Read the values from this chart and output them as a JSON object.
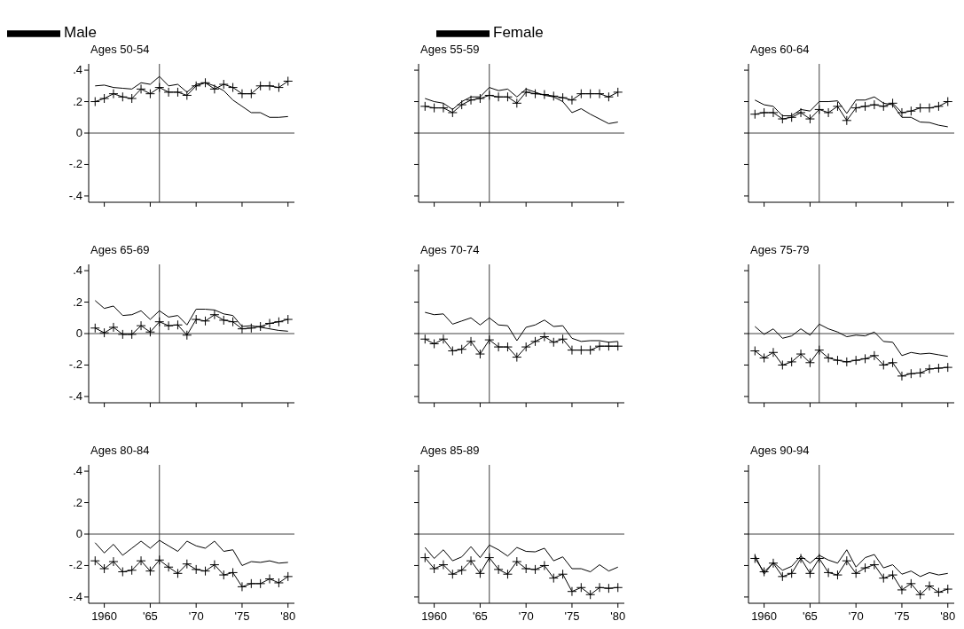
{
  "chart_data": [
    {
      "type": "line",
      "title": "Ages 50-54",
      "legend": "top",
      "tick_labels": "y",
      "xlim": [
        1958.3,
        1980.7
      ],
      "ylim": [
        -0.44,
        0.44
      ],
      "xticks": [
        {
          "value": 1960,
          "label": null
        },
        {
          "value": 1965,
          "label": null
        },
        {
          "value": 1970,
          "label": null
        },
        {
          "value": 1975,
          "label": null
        },
        {
          "value": 1980,
          "label": null
        }
      ],
      "yticks": [
        {
          "value": 0.4,
          "label": ".4"
        },
        {
          "value": 0.2,
          "label": ".2"
        },
        {
          "value": 0,
          "label": "0"
        },
        {
          "value": -0.2,
          "label": "-.2"
        },
        {
          "value": -0.4,
          "label": "-.4"
        }
      ],
      "grid": false,
      "line_style": "solid",
      "ref_lines": [
        {
          "axis": "x",
          "value": 1966,
          "color": "#404040"
        },
        {
          "axis": "y",
          "value": 0,
          "color": "#404040"
        }
      ],
      "x": [
        1959,
        1960,
        1961,
        1962,
        1963,
        1964,
        1965,
        1966,
        1967,
        1968,
        1969,
        1970,
        1971,
        1972,
        1973,
        1974,
        1975,
        1976,
        1977,
        1978,
        1979,
        1980
      ],
      "series": [
        {
          "name": "Male",
          "color": "#000000",
          "marker": "none",
          "values": [
            0.3,
            0.305,
            0.29,
            0.285,
            0.28,
            0.32,
            0.31,
            0.36,
            0.3,
            0.31,
            0.26,
            0.31,
            0.32,
            0.3,
            0.27,
            0.21,
            0.17,
            0.13,
            0.13,
            0.1,
            0.1,
            0.105
          ]
        },
        {
          "name": "Female",
          "color": "#000000",
          "marker": "cross",
          "values": [
            0.2,
            0.22,
            0.25,
            0.23,
            0.22,
            0.28,
            0.25,
            0.29,
            0.26,
            0.26,
            0.24,
            0.3,
            0.32,
            0.28,
            0.31,
            0.29,
            0.25,
            0.25,
            0.3,
            0.3,
            0.29,
            0.33
          ]
        }
      ]
    },
    {
      "type": "line",
      "title": "Ages 55-59",
      "tick_labels": false,
      "xlim": [
        1958.3,
        1980.7
      ],
      "ylim": [
        -0.44,
        0.44
      ],
      "xticks": [
        {
          "value": 1960,
          "label": null
        },
        {
          "value": 1965,
          "label": null
        },
        {
          "value": 1970,
          "label": null
        },
        {
          "value": 1975,
          "label": null
        },
        {
          "value": 1980,
          "label": null
        }
      ],
      "yticks": [
        {
          "value": 0.4,
          "label": null
        },
        {
          "value": 0.2,
          "label": null
        },
        {
          "value": 0,
          "label": null
        },
        {
          "value": -0.2,
          "label": null
        },
        {
          "value": -0.4,
          "label": null
        }
      ],
      "grid": false,
      "line_style": "solid",
      "ref_lines": [
        {
          "axis": "x",
          "value": 1966,
          "color": "#404040"
        },
        {
          "axis": "y",
          "value": 0,
          "color": "#404040"
        }
      ],
      "x": [
        1959,
        1960,
        1961,
        1962,
        1963,
        1964,
        1965,
        1966,
        1967,
        1968,
        1969,
        1970,
        1971,
        1972,
        1973,
        1974,
        1975,
        1976,
        1977,
        1978,
        1979,
        1980
      ],
      "series": [
        {
          "color": "#000000",
          "marker": "none",
          "values": [
            0.22,
            0.2,
            0.19,
            0.15,
            0.2,
            0.23,
            0.23,
            0.29,
            0.27,
            0.28,
            0.23,
            0.28,
            0.26,
            0.24,
            0.23,
            0.2,
            0.13,
            0.155,
            0.12,
            0.09,
            0.06,
            0.07
          ]
        },
        {
          "color": "#000000",
          "marker": "cross",
          "values": [
            0.17,
            0.16,
            0.16,
            0.13,
            0.18,
            0.21,
            0.22,
            0.24,
            0.23,
            0.23,
            0.19,
            0.26,
            0.25,
            0.245,
            0.235,
            0.225,
            0.21,
            0.25,
            0.25,
            0.25,
            0.23,
            0.26
          ]
        }
      ]
    },
    {
      "type": "line",
      "title": "Ages 60-64",
      "tick_labels": false,
      "xlim": [
        1958.3,
        1980.7
      ],
      "ylim": [
        -0.44,
        0.44
      ],
      "xticks": [
        {
          "value": 1960,
          "label": null
        },
        {
          "value": 1965,
          "label": null
        },
        {
          "value": 1970,
          "label": null
        },
        {
          "value": 1975,
          "label": null
        },
        {
          "value": 1980,
          "label": null
        }
      ],
      "yticks": [
        {
          "value": 0.4,
          "label": null
        },
        {
          "value": 0.2,
          "label": null
        },
        {
          "value": 0,
          "label": null
        },
        {
          "value": -0.2,
          "label": null
        },
        {
          "value": -0.4,
          "label": null
        }
      ],
      "grid": false,
      "line_style": "solid",
      "ref_lines": [
        {
          "axis": "x",
          "value": 1966,
          "color": "#404040"
        },
        {
          "axis": "y",
          "value": 0,
          "color": "#404040"
        }
      ],
      "x": [
        1959,
        1960,
        1961,
        1962,
        1963,
        1964,
        1965,
        1966,
        1967,
        1968,
        1969,
        1970,
        1971,
        1972,
        1973,
        1974,
        1975,
        1976,
        1977,
        1978,
        1979,
        1980
      ],
      "series": [
        {
          "color": "#000000",
          "marker": "none",
          "values": [
            0.21,
            0.18,
            0.17,
            0.11,
            0.11,
            0.15,
            0.14,
            0.2,
            0.2,
            0.205,
            0.125,
            0.21,
            0.21,
            0.23,
            0.19,
            0.18,
            0.1,
            0.1,
            0.07,
            0.067,
            0.05,
            0.04
          ]
        },
        {
          "color": "#000000",
          "marker": "cross",
          "values": [
            0.12,
            0.13,
            0.13,
            0.09,
            0.1,
            0.13,
            0.09,
            0.15,
            0.13,
            0.17,
            0.08,
            0.16,
            0.17,
            0.18,
            0.17,
            0.19,
            0.13,
            0.14,
            0.16,
            0.16,
            0.17,
            0.2
          ]
        }
      ]
    },
    {
      "type": "line",
      "title": "Ages 65-69",
      "tick_labels": "y",
      "xlim": [
        1958.3,
        1980.7
      ],
      "ylim": [
        -0.44,
        0.44
      ],
      "xticks": [
        {
          "value": 1960,
          "label": null
        },
        {
          "value": 1965,
          "label": null
        },
        {
          "value": 1970,
          "label": null
        },
        {
          "value": 1975,
          "label": null
        },
        {
          "value": 1980,
          "label": null
        }
      ],
      "yticks": [
        {
          "value": 0.4,
          "label": ".4"
        },
        {
          "value": 0.2,
          "label": ".2"
        },
        {
          "value": 0,
          "label": "0"
        },
        {
          "value": -0.2,
          "label": "-.2"
        },
        {
          "value": -0.4,
          "label": "-.4"
        }
      ],
      "grid": false,
      "line_style": "solid",
      "ref_lines": [
        {
          "axis": "x",
          "value": 1966,
          "color": "#404040"
        },
        {
          "axis": "y",
          "value": 0,
          "color": "#404040"
        }
      ],
      "x": [
        1959,
        1960,
        1961,
        1962,
        1963,
        1964,
        1965,
        1966,
        1967,
        1968,
        1969,
        1970,
        1971,
        1972,
        1973,
        1974,
        1975,
        1976,
        1977,
        1978,
        1979,
        1980
      ],
      "series": [
        {
          "color": "#000000",
          "marker": "none",
          "values": [
            0.21,
            0.16,
            0.175,
            0.115,
            0.12,
            0.145,
            0.09,
            0.145,
            0.105,
            0.115,
            0.055,
            0.155,
            0.155,
            0.15,
            0.125,
            0.115,
            0.045,
            0.05,
            0.04,
            0.03,
            0.02,
            0.015
          ]
        },
        {
          "color": "#000000",
          "marker": "cross",
          "values": [
            0.035,
            0.005,
            0.04,
            -0.005,
            -0.005,
            0.05,
            0.01,
            0.075,
            0.05,
            0.055,
            -0.01,
            0.09,
            0.08,
            0.12,
            0.085,
            0.075,
            0.03,
            0.035,
            0.045,
            0.065,
            0.075,
            0.09
          ]
        }
      ]
    },
    {
      "type": "line",
      "title": "Ages 70-74",
      "tick_labels": false,
      "xlim": [
        1958.3,
        1980.7
      ],
      "ylim": [
        -0.44,
        0.44
      ],
      "xticks": [
        {
          "value": 1960,
          "label": null
        },
        {
          "value": 1965,
          "label": null
        },
        {
          "value": 1970,
          "label": null
        },
        {
          "value": 1975,
          "label": null
        },
        {
          "value": 1980,
          "label": null
        }
      ],
      "yticks": [
        {
          "value": 0.4,
          "label": null
        },
        {
          "value": 0.2,
          "label": null
        },
        {
          "value": 0,
          "label": null
        },
        {
          "value": -0.2,
          "label": null
        },
        {
          "value": -0.4,
          "label": null
        }
      ],
      "grid": false,
      "line_style": "solid",
      "ref_lines": [
        {
          "axis": "x",
          "value": 1966,
          "color": "#404040"
        },
        {
          "axis": "y",
          "value": 0,
          "color": "#404040"
        }
      ],
      "x": [
        1959,
        1960,
        1961,
        1962,
        1963,
        1964,
        1965,
        1966,
        1967,
        1968,
        1969,
        1970,
        1971,
        1972,
        1973,
        1974,
        1975,
        1976,
        1977,
        1978,
        1979,
        1980
      ],
      "series": [
        {
          "color": "#000000",
          "marker": "none",
          "values": [
            0.135,
            0.12,
            0.125,
            0.06,
            0.08,
            0.1,
            0.055,
            0.1,
            0.055,
            0.05,
            -0.045,
            0.04,
            0.055,
            0.086,
            0.045,
            0.05,
            -0.03,
            -0.05,
            -0.045,
            -0.045,
            -0.055,
            -0.05
          ]
        },
        {
          "color": "#000000",
          "marker": "cross",
          "values": [
            -0.035,
            -0.065,
            -0.035,
            -0.11,
            -0.1,
            -0.05,
            -0.13,
            -0.04,
            -0.085,
            -0.085,
            -0.15,
            -0.085,
            -0.05,
            -0.02,
            -0.055,
            -0.035,
            -0.105,
            -0.105,
            -0.105,
            -0.08,
            -0.08,
            -0.08
          ]
        }
      ]
    },
    {
      "type": "line",
      "title": "Ages 75-79",
      "tick_labels": false,
      "xlim": [
        1958.3,
        1980.7
      ],
      "ylim": [
        -0.44,
        0.44
      ],
      "xticks": [
        {
          "value": 1960,
          "label": null
        },
        {
          "value": 1965,
          "label": null
        },
        {
          "value": 1970,
          "label": null
        },
        {
          "value": 1975,
          "label": null
        },
        {
          "value": 1980,
          "label": null
        }
      ],
      "yticks": [
        {
          "value": 0.4,
          "label": null
        },
        {
          "value": 0.2,
          "label": null
        },
        {
          "value": 0,
          "label": null
        },
        {
          "value": -0.2,
          "label": null
        },
        {
          "value": -0.4,
          "label": null
        }
      ],
      "grid": false,
      "line_style": "solid",
      "ref_lines": [
        {
          "axis": "x",
          "value": 1966,
          "color": "#404040"
        },
        {
          "axis": "y",
          "value": 0,
          "color": "#404040"
        }
      ],
      "x": [
        1959,
        1960,
        1961,
        1962,
        1963,
        1964,
        1965,
        1966,
        1967,
        1968,
        1969,
        1970,
        1971,
        1972,
        1973,
        1974,
        1975,
        1976,
        1977,
        1978,
        1979,
        1980
      ],
      "series": [
        {
          "color": "#000000",
          "marker": "none",
          "values": [
            0.045,
            -0.005,
            0.03,
            -0.03,
            -0.015,
            0.03,
            -0.01,
            0.06,
            0.03,
            0.01,
            -0.02,
            -0.01,
            -0.015,
            0.01,
            -0.05,
            -0.055,
            -0.14,
            -0.12,
            -0.13,
            -0.125,
            -0.135,
            -0.145
          ]
        },
        {
          "color": "#000000",
          "marker": "cross",
          "values": [
            -0.11,
            -0.155,
            -0.12,
            -0.2,
            -0.18,
            -0.13,
            -0.185,
            -0.105,
            -0.155,
            -0.17,
            -0.18,
            -0.17,
            -0.16,
            -0.14,
            -0.2,
            -0.185,
            -0.27,
            -0.255,
            -0.25,
            -0.225,
            -0.22,
            -0.215
          ]
        }
      ]
    },
    {
      "type": "line",
      "title": "Ages 80-84",
      "xlim": [
        1958.3,
        1980.7
      ],
      "ylim": [
        -0.44,
        0.44
      ],
      "xticks": [
        {
          "value": 1960,
          "label": "1960"
        },
        {
          "value": 1965,
          "label": "'65"
        },
        {
          "value": 1970,
          "label": "'70"
        },
        {
          "value": 1975,
          "label": "'75"
        },
        {
          "value": 1980,
          "label": "'80"
        }
      ],
      "yticks": [
        {
          "value": 0.4,
          "label": ".4"
        },
        {
          "value": 0.2,
          "label": ".2"
        },
        {
          "value": 0,
          "label": "0"
        },
        {
          "value": -0.2,
          "label": "-.2"
        },
        {
          "value": -0.4,
          "label": "-.4"
        }
      ],
      "grid": false,
      "line_style": "solid",
      "ref_lines": [
        {
          "axis": "x",
          "value": 1966,
          "color": "#404040"
        },
        {
          "axis": "y",
          "value": 0,
          "color": "#404040"
        }
      ],
      "x": [
        1959,
        1960,
        1961,
        1962,
        1963,
        1964,
        1965,
        1966,
        1967,
        1968,
        1969,
        1970,
        1971,
        1972,
        1973,
        1974,
        1975,
        1976,
        1977,
        1978,
        1979,
        1980
      ],
      "series": [
        {
          "color": "#000000",
          "marker": "none",
          "values": [
            -0.055,
            -0.12,
            -0.065,
            -0.135,
            -0.09,
            -0.045,
            -0.09,
            -0.04,
            -0.075,
            -0.11,
            -0.045,
            -0.075,
            -0.09,
            -0.045,
            -0.11,
            -0.1,
            -0.2,
            -0.175,
            -0.18,
            -0.17,
            -0.185,
            -0.18
          ]
        },
        {
          "color": "#000000",
          "marker": "cross",
          "values": [
            -0.17,
            -0.22,
            -0.175,
            -0.24,
            -0.23,
            -0.17,
            -0.235,
            -0.165,
            -0.21,
            -0.25,
            -0.19,
            -0.225,
            -0.235,
            -0.195,
            -0.26,
            -0.245,
            -0.335,
            -0.315,
            -0.315,
            -0.285,
            -0.31,
            -0.27
          ]
        }
      ]
    },
    {
      "type": "line",
      "title": "Ages 85-89",
      "tick_labels": "x",
      "xlim": [
        1958.3,
        1980.7
      ],
      "ylim": [
        -0.44,
        0.44
      ],
      "xticks": [
        {
          "value": 1960,
          "label": "1960"
        },
        {
          "value": 1965,
          "label": "'65"
        },
        {
          "value": 1970,
          "label": "'70"
        },
        {
          "value": 1975,
          "label": "'75"
        },
        {
          "value": 1980,
          "label": "'80"
        }
      ],
      "yticks": [
        {
          "value": 0.4,
          "label": null
        },
        {
          "value": 0.2,
          "label": null
        },
        {
          "value": 0,
          "label": null
        },
        {
          "value": -0.2,
          "label": null
        },
        {
          "value": -0.4,
          "label": null
        }
      ],
      "grid": false,
      "line_style": "solid",
      "ref_lines": [
        {
          "axis": "x",
          "value": 1966,
          "color": "#404040"
        },
        {
          "axis": "y",
          "value": 0,
          "color": "#404040"
        }
      ],
      "x": [
        1959,
        1960,
        1961,
        1962,
        1963,
        1964,
        1965,
        1966,
        1967,
        1968,
        1969,
        1970,
        1971,
        1972,
        1973,
        1974,
        1975,
        1976,
        1977,
        1978,
        1979,
        1980
      ],
      "series": [
        {
          "color": "#000000",
          "marker": "none",
          "values": [
            -0.085,
            -0.155,
            -0.1,
            -0.17,
            -0.145,
            -0.08,
            -0.15,
            -0.07,
            -0.1,
            -0.14,
            -0.085,
            -0.11,
            -0.113,
            -0.09,
            -0.17,
            -0.145,
            -0.22,
            -0.22,
            -0.24,
            -0.195,
            -0.235,
            -0.21
          ]
        },
        {
          "color": "#000000",
          "marker": "cross",
          "values": [
            -0.15,
            -0.22,
            -0.195,
            -0.255,
            -0.23,
            -0.17,
            -0.25,
            -0.15,
            -0.225,
            -0.255,
            -0.175,
            -0.22,
            -0.225,
            -0.2,
            -0.28,
            -0.255,
            -0.365,
            -0.34,
            -0.385,
            -0.34,
            -0.345,
            -0.34
          ]
        }
      ]
    },
    {
      "type": "line",
      "title": "Ages 90-94",
      "tick_labels": "x",
      "xlim": [
        1958.3,
        1980.7
      ],
      "ylim": [
        -0.44,
        0.44
      ],
      "xticks": [
        {
          "value": 1960,
          "label": "1960"
        },
        {
          "value": 1965,
          "label": "'65"
        },
        {
          "value": 1970,
          "label": "'70"
        },
        {
          "value": 1975,
          "label": "'75"
        },
        {
          "value": 1980,
          "label": "'80"
        }
      ],
      "yticks": [
        {
          "value": 0.4,
          "label": null
        },
        {
          "value": 0.2,
          "label": null
        },
        {
          "value": 0,
          "label": null
        },
        {
          "value": -0.2,
          "label": null
        },
        {
          "value": -0.4,
          "label": null
        }
      ],
      "grid": false,
      "line_style": "solid",
      "ref_lines": [
        {
          "axis": "x",
          "value": 1966,
          "color": "#404040"
        },
        {
          "axis": "y",
          "value": 0,
          "color": "#404040"
        }
      ],
      "x": [
        1959,
        1960,
        1961,
        1962,
        1963,
        1964,
        1965,
        1966,
        1967,
        1968,
        1969,
        1970,
        1971,
        1972,
        1973,
        1974,
        1975,
        1976,
        1977,
        1978,
        1979,
        1980
      ],
      "series": [
        {
          "color": "#000000",
          "marker": "none",
          "values": [
            -0.135,
            -0.255,
            -0.18,
            -0.23,
            -0.205,
            -0.14,
            -0.185,
            -0.135,
            -0.165,
            -0.185,
            -0.1,
            -0.21,
            -0.15,
            -0.13,
            -0.215,
            -0.195,
            -0.255,
            -0.235,
            -0.27,
            -0.245,
            -0.26,
            -0.25
          ]
        },
        {
          "color": "#000000",
          "marker": "cross",
          "values": [
            -0.155,
            -0.24,
            -0.185,
            -0.27,
            -0.25,
            -0.155,
            -0.25,
            -0.155,
            -0.245,
            -0.26,
            -0.17,
            -0.25,
            -0.215,
            -0.195,
            -0.28,
            -0.26,
            -0.355,
            -0.315,
            -0.385,
            -0.33,
            -0.37,
            -0.35
          ]
        }
      ]
    }
  ]
}
